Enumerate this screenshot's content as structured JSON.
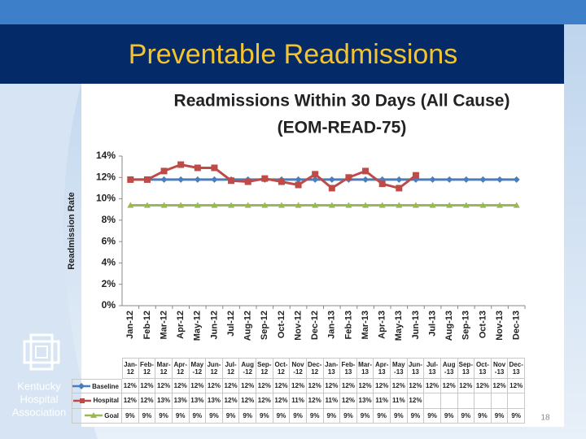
{
  "slide": {
    "title": "Preventable Readmissions",
    "logo": [
      "Kentucky",
      "Hospital",
      "Association"
    ],
    "page_number": 18
  },
  "chart_data": {
    "type": "line",
    "title": "Readmissions Within 30 Days (All Cause)",
    "subtitle": "(EOM-READ-75)",
    "y_label": "Readmission Rate",
    "categories": [
      "Jan-12",
      "Feb-12",
      "Mar-12",
      "Apr-12",
      "May-12",
      "Jun-12",
      "Jul-12",
      "Aug-12",
      "Sep-12",
      "Oct-12",
      "Nov-12",
      "Dec-12",
      "Jan-13",
      "Feb-13",
      "Mar-13",
      "Apr-13",
      "May-13",
      "Jun-13",
      "Jul-13",
      "Aug-13",
      "Sep-13",
      "Oct-13",
      "Nov-13",
      "Dec-13"
    ],
    "series": [
      {
        "name": "Baseline",
        "color": "#4a7ebb",
        "marker": "diamond",
        "values": [
          11.8,
          11.8,
          11.8,
          11.8,
          11.8,
          11.8,
          11.8,
          11.8,
          11.8,
          11.8,
          11.8,
          11.8,
          11.8,
          11.8,
          11.8,
          11.8,
          11.8,
          11.8,
          11.8,
          11.8,
          11.8,
          11.8,
          11.8,
          11.8
        ],
        "value_labels": [
          "12%",
          "12%",
          "12%",
          "12%",
          "12%",
          "12%",
          "12%",
          "12%",
          "12%",
          "12%",
          "12%",
          "12%",
          "12%",
          "12%",
          "12%",
          "12%",
          "12%",
          "12%",
          "12%",
          "12%",
          "12%",
          "12%",
          "12%",
          "12%"
        ]
      },
      {
        "name": "Hospital",
        "color": "#be4b48",
        "marker": "square",
        "values": [
          11.8,
          11.8,
          12.6,
          13.2,
          12.9,
          12.9,
          11.7,
          11.6,
          11.9,
          11.6,
          11.3,
          12.3,
          11.0,
          12.0,
          12.6,
          11.4,
          11.0,
          12.2,
          null,
          null,
          null,
          null,
          null,
          null
        ],
        "value_labels": [
          "12%",
          "12%",
          "13%",
          "13%",
          "13%",
          "13%",
          "12%",
          "12%",
          "12%",
          "12%",
          "11%",
          "12%",
          "11%",
          "12%",
          "13%",
          "11%",
          "11%",
          "12%",
          null,
          null,
          null,
          null,
          null,
          null
        ]
      },
      {
        "name": "Goal",
        "color": "#98b954",
        "marker": "triangle",
        "values": [
          9.4,
          9.4,
          9.4,
          9.4,
          9.4,
          9.4,
          9.4,
          9.4,
          9.4,
          9.4,
          9.4,
          9.4,
          9.4,
          9.4,
          9.4,
          9.4,
          9.4,
          9.4,
          9.4,
          9.4,
          9.4,
          9.4,
          9.4,
          9.4
        ],
        "value_labels": [
          "9%",
          "9%",
          "9%",
          "9%",
          "9%",
          "9%",
          "9%",
          "9%",
          "9%",
          "9%",
          "9%",
          "9%",
          "9%",
          "9%",
          "9%",
          "9%",
          "9%",
          "9%",
          "9%",
          "9%",
          "9%",
          "9%",
          "9%",
          "9%"
        ]
      }
    ],
    "ylim": [
      0,
      14
    ],
    "yticks": [
      {
        "value": 0,
        "label": "0%"
      },
      {
        "value": 2,
        "label": "2%"
      },
      {
        "value": 4,
        "label": "4%"
      },
      {
        "value": 6,
        "label": "6%"
      },
      {
        "value": 8,
        "label": "8%"
      },
      {
        "value": 10,
        "label": "10%"
      },
      {
        "value": 12,
        "label": "12%"
      },
      {
        "value": 14,
        "label": "14%"
      }
    ],
    "grid": false,
    "data_table": true
  }
}
